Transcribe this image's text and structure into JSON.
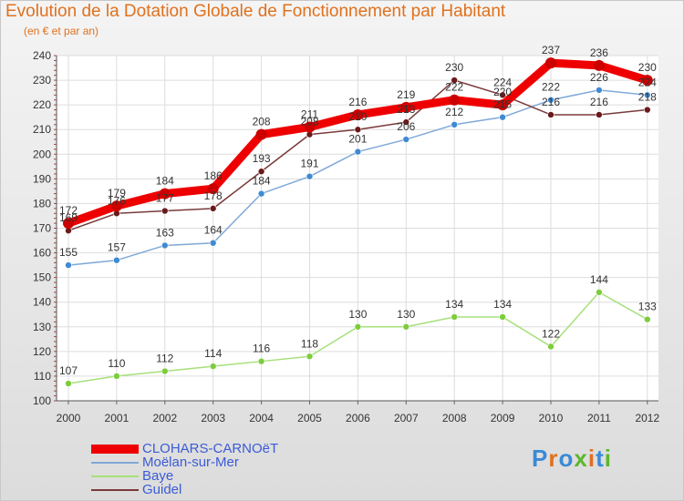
{
  "header": {
    "title": "Evolution de la Dotation Globale de Fonctionnement par Habitant",
    "subtitle": "(en € et par an)"
  },
  "chart_data": {
    "type": "line",
    "title": "Evolution de la Dotation Globale de Fonctionnement par Habitant",
    "subtitle": "(en € et par an)",
    "xlabel": "",
    "ylabel": "",
    "x": [
      "2000",
      "2001",
      "2002",
      "2003",
      "2004",
      "2005",
      "2006",
      "2007",
      "2008",
      "2009",
      "2010",
      "2011",
      "2012"
    ],
    "ylim": [
      100,
      240
    ],
    "yticks": [
      100,
      110,
      120,
      130,
      140,
      150,
      160,
      170,
      180,
      190,
      200,
      210,
      220,
      230,
      240
    ],
    "grid": true,
    "legend_position": "bottom-left",
    "series": [
      {
        "name": "CLOHARS-CARNOëT",
        "color": "#ee0000",
        "marker_color": "#cc0000",
        "values": [
          172,
          179,
          184,
          186,
          208,
          211,
          216,
          219,
          222,
          220,
          237,
          236,
          230
        ]
      },
      {
        "name": "Moëlan-sur-Mer",
        "color": "#7fa8d8",
        "marker_color": "#3f8ad2",
        "values": [
          155,
          157,
          163,
          164,
          184,
          191,
          201,
          206,
          212,
          215,
          222,
          226,
          224
        ]
      },
      {
        "name": "Baye",
        "color": "#a6e07a",
        "marker_color": "#7ccc3c",
        "values": [
          107,
          110,
          112,
          114,
          116,
          118,
          130,
          130,
          134,
          134,
          122,
          144,
          133
        ]
      },
      {
        "name": "Guidel",
        "color": "#7a3a3a",
        "marker_color": "#6a1a1a",
        "values": [
          169,
          176,
          177,
          178,
          193,
          208,
          210,
          213,
          230,
          224,
          216,
          216,
          218
        ]
      }
    ]
  },
  "legend": {
    "items": [
      {
        "label": "CLOHARS-CARNOëT"
      },
      {
        "label": "Moëlan-sur-Mer"
      },
      {
        "label": "Baye"
      },
      {
        "label": "Guidel"
      }
    ]
  },
  "logo": {
    "letters": [
      "P",
      "r",
      "o",
      "x",
      "i",
      "t",
      "i"
    ],
    "colors": [
      "#3a8ad6",
      "#e07020",
      "#3a8ad6",
      "#5cb82a",
      "#e07020",
      "#3a8ad6",
      "#5cb82a"
    ]
  }
}
